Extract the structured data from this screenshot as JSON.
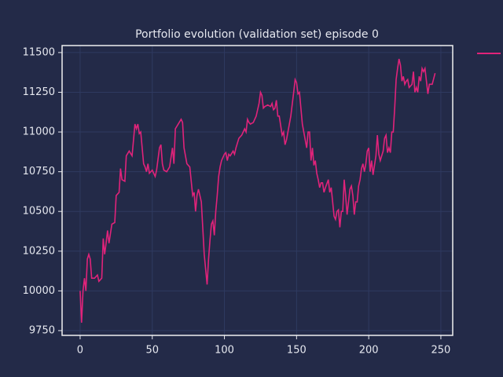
{
  "chart_data": {
    "type": "line",
    "title": "Portfolio evolution (validation set) episode 0",
    "series": [
      {
        "color": "#e0237a",
        "x": [
          0,
          1,
          2,
          3,
          4,
          5,
          6,
          7,
          8,
          10,
          12,
          13,
          15,
          16,
          17,
          18,
          19,
          20,
          22,
          24,
          25,
          27,
          28,
          29,
          31,
          32,
          34,
          36,
          37,
          38,
          39,
          40,
          41,
          42,
          43,
          44,
          45,
          46,
          47,
          48,
          50,
          52,
          53,
          55,
          56,
          57,
          58,
          60,
          62,
          64,
          65,
          66,
          68,
          70,
          71,
          72,
          74,
          76,
          78,
          79,
          80,
          81,
          82,
          84,
          86,
          88,
          89,
          90,
          91,
          92,
          93,
          94,
          95,
          96,
          97,
          98,
          100,
          101,
          102,
          103,
          104,
          106,
          107,
          108,
          110,
          112,
          114,
          115,
          116,
          117,
          118,
          120,
          122,
          124,
          125,
          126,
          127,
          128,
          130,
          132,
          133,
          134,
          135,
          136,
          137,
          138,
          139,
          140,
          141,
          142,
          143,
          144,
          145,
          146,
          148,
          149,
          150,
          151,
          152,
          153,
          154,
          155,
          156,
          157,
          158,
          159,
          160,
          161,
          162,
          163,
          164,
          165,
          166,
          167,
          168,
          169,
          170,
          172,
          173,
          174,
          175,
          176,
          177,
          178,
          179,
          180,
          181,
          182,
          183,
          184,
          185,
          186,
          187,
          188,
          189,
          190,
          191,
          192,
          193,
          194,
          195,
          196,
          197,
          198,
          199,
          200,
          201,
          202,
          203,
          204,
          205,
          206,
          207,
          208,
          210,
          211,
          212,
          213,
          214,
          215,
          216,
          217,
          218,
          219,
          220,
          221,
          222,
          223,
          224,
          225,
          226,
          227,
          228,
          230,
          231,
          232,
          233,
          234,
          235,
          236,
          237,
          238,
          239,
          240,
          241,
          242,
          244,
          246
        ],
        "values": [
          10000,
          9800,
          10000,
          10080,
          10000,
          10200,
          10230,
          10200,
          10080,
          10080,
          10100,
          10060,
          10080,
          10330,
          10230,
          10300,
          10380,
          10300,
          10420,
          10430,
          10600,
          10620,
          10770,
          10700,
          10690,
          10850,
          10880,
          10850,
          10950,
          11050,
          11020,
          11050,
          10990,
          11000,
          10900,
          10800,
          10780,
          10750,
          10800,
          10740,
          10760,
          10720,
          10760,
          10900,
          10920,
          10800,
          10760,
          10750,
          10780,
          10900,
          10800,
          11020,
          11050,
          11080,
          11060,
          10900,
          10800,
          10780,
          10600,
          10620,
          10500,
          10600,
          10640,
          10560,
          10230,
          10040,
          10200,
          10320,
          10420,
          10440,
          10350,
          10500,
          10600,
          10720,
          10780,
          10820,
          10860,
          10870,
          10820,
          10860,
          10850,
          10880,
          10860,
          10900,
          10960,
          10980,
          11020,
          11000,
          11080,
          11060,
          11050,
          11060,
          11100,
          11180,
          11250,
          11230,
          11150,
          11160,
          11170,
          11160,
          11180,
          11140,
          11150,
          11200,
          11100,
          11100,
          11040,
          10980,
          11000,
          10920,
          10950,
          11000,
          11050,
          11100,
          11250,
          11330,
          11310,
          11240,
          11250,
          11150,
          11050,
          11000,
          10950,
          10900,
          11000,
          11000,
          10820,
          10900,
          10790,
          10820,
          10740,
          10700,
          10650,
          10680,
          10680,
          10620,
          10650,
          10700,
          10620,
          10650,
          10560,
          10470,
          10450,
          10500,
          10510,
          10400,
          10500,
          10500,
          10700,
          10600,
          10480,
          10560,
          10640,
          10660,
          10600,
          10480,
          10560,
          10560,
          10660,
          10700,
          10770,
          10800,
          10750,
          10800,
          10880,
          10900,
          10750,
          10820,
          10730,
          10790,
          10850,
          10980,
          10860,
          10820,
          10880,
          10960,
          10980,
          10870,
          10900,
          10870,
          11000,
          11000,
          11150,
          11330,
          11400,
          11460,
          11420,
          11320,
          11350,
          11300,
          11320,
          11330,
          11280,
          11300,
          11380,
          11250,
          11280,
          11250,
          11350,
          11320,
          11400,
          11380,
          11400,
          11320,
          11240,
          11300,
          11300,
          11370
        ]
      }
    ],
    "xlim": [
      -12.5,
      258.2
    ],
    "ylim": [
      9720,
      11544
    ],
    "xticks": [
      0,
      50,
      100,
      150,
      200,
      250
    ],
    "yticks": [
      9750,
      10000,
      10250,
      10500,
      10750,
      11000,
      11250,
      11500
    ],
    "grid": true
  }
}
